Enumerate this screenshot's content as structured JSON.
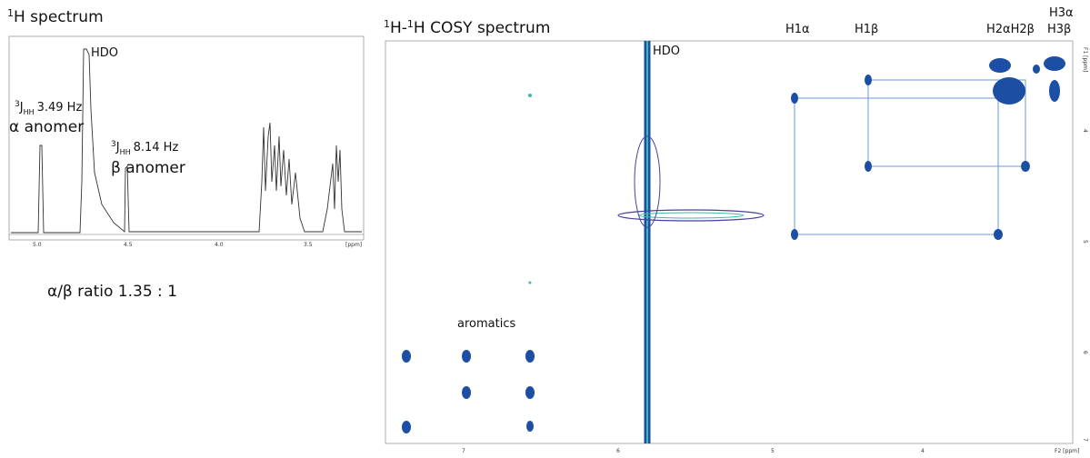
{
  "left_panel": {
    "title_sup": "1",
    "title": "H spectrum",
    "peak_hdo": "HDO",
    "alpha": {
      "sup": "3",
      "j": "J",
      "sub": "HH",
      "coupling": "3.49 Hz",
      "name": "α anomer"
    },
    "beta": {
      "sup": "3",
      "j": "J",
      "sub": "HH",
      "coupling": "8.14 Hz",
      "name": "β anomer"
    },
    "x_axis": [
      "5.0",
      "4.5",
      "4.0",
      "3.5",
      "[ppm]"
    ],
    "ratio": "α/β ratio 1.35 : 1"
  },
  "right_panel": {
    "title_sup1": "1",
    "title_mid": "H-",
    "title_sup2": "1",
    "title": "H COSY spectrum",
    "labels": {
      "h1a": "H1α",
      "h1b": "H1β",
      "h2": "H2αH2β",
      "h3a": "H3α",
      "h3b": "H3β",
      "hdo": "HDO",
      "aromatics": "aromatics"
    },
    "x_axis": [
      "7",
      "6",
      "5",
      "4",
      "F2 [ppm]"
    ],
    "y_axis": [
      "F1 [ppm]",
      "4",
      "5",
      "6",
      "7"
    ]
  }
}
